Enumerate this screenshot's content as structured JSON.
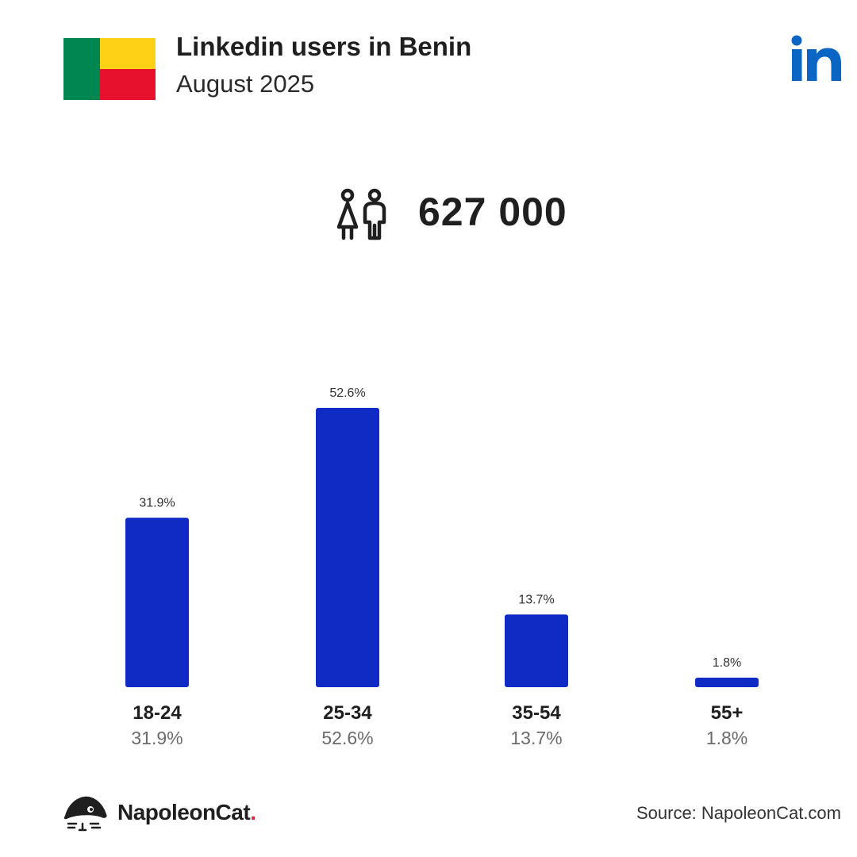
{
  "header": {
    "title": "Linkedin users in Benin",
    "subtitle": "August 2025"
  },
  "flag": {
    "country": "Benin",
    "colors": {
      "green": "#008751",
      "yellow": "#FCD116",
      "red": "#E8112D"
    }
  },
  "brand": {
    "icon": "linkedin-logo",
    "text": "in",
    "color": "#0A66C2"
  },
  "total": {
    "icon": "users-icon",
    "value": "627 000"
  },
  "chart_data": {
    "type": "bar",
    "title": "",
    "xlabel": "",
    "ylabel": "",
    "categories": [
      "18-24",
      "25-34",
      "35-54",
      "55+"
    ],
    "values": [
      31.9,
      52.6,
      13.7,
      1.8
    ],
    "value_labels": [
      "31.9%",
      "52.6%",
      "13.7%",
      "1.8%"
    ],
    "ylim": [
      0,
      52.6
    ],
    "grid": false,
    "legend": "none",
    "bar_color": "#102BC4"
  },
  "footer": {
    "logo_text": "NapoleonCat",
    "logo_dot": ".",
    "source": "Source: NapoleonCat.com"
  }
}
